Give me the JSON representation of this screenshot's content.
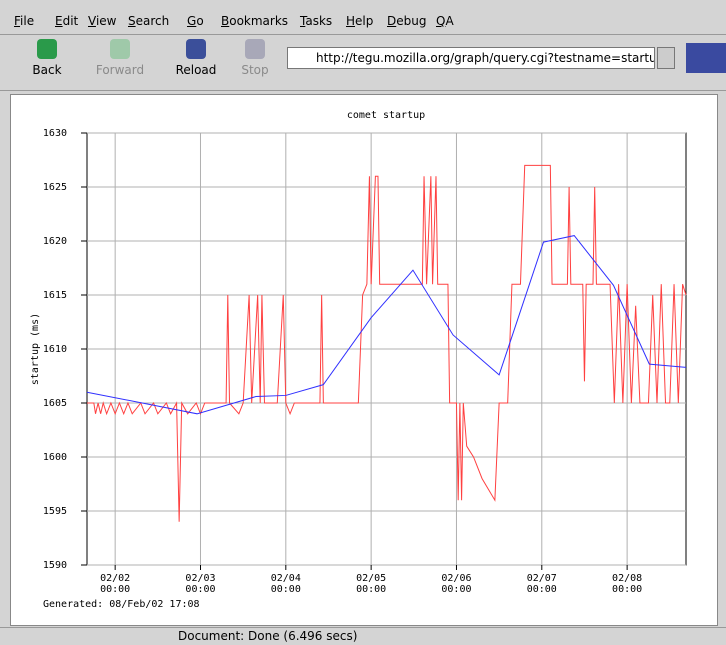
{
  "menu": [
    "File",
    "Edit",
    "View",
    "Search",
    "Go",
    "Bookmarks",
    "Tasks",
    "Help",
    "Debug",
    "QA"
  ],
  "toolbar": {
    "back": "Back",
    "forward": "Forward",
    "reload": "Reload",
    "stop": "Stop",
    "url": "http://tegu.mozilla.org/graph/query.cgi?testname=startup&"
  },
  "chart_data": {
    "type": "line",
    "title": "comet startup",
    "ylabel": "startup (ms)",
    "xlim": [
      1.67,
      8.69
    ],
    "xticks": [
      {
        "value": 2,
        "label": "02/02\n00:00"
      },
      {
        "value": 3,
        "label": "02/03\n00:00"
      },
      {
        "value": 4,
        "label": "02/04\n00:00"
      },
      {
        "value": 5,
        "label": "02/05\n00:00"
      },
      {
        "value": 6,
        "label": "02/06\n00:00"
      },
      {
        "value": 7,
        "label": "02/07\n00:00"
      },
      {
        "value": 8,
        "label": "02/08\n00:00"
      }
    ],
    "ylim": [
      1590,
      1630
    ],
    "yticks": [
      1590,
      1595,
      1600,
      1605,
      1610,
      1615,
      1620,
      1625,
      1630
    ],
    "grid": true,
    "series": [
      {
        "color": "#ff4040",
        "x": [
          1.67,
          1.75,
          1.77,
          1.8,
          1.83,
          1.86,
          1.9,
          1.95,
          2.0,
          2.05,
          2.1,
          2.15,
          2.2,
          2.3,
          2.35,
          2.45,
          2.5,
          2.6,
          2.65,
          2.72,
          2.75,
          2.78,
          2.85,
          2.95,
          3.0,
          3.05,
          3.3,
          3.32,
          3.34,
          3.45,
          3.5,
          3.57,
          3.6,
          3.67,
          3.7,
          3.72,
          3.75,
          3.9,
          3.97,
          4.0,
          4.05,
          4.1,
          4.4,
          4.42,
          4.44,
          4.85,
          4.9,
          4.95,
          4.98,
          5.0,
          5.05,
          5.08,
          5.1,
          5.6,
          5.62,
          5.65,
          5.7,
          5.72,
          5.76,
          5.78,
          5.9,
          5.92,
          6.0,
          6.02,
          6.04,
          6.06,
          6.08,
          6.12,
          6.2,
          6.3,
          6.45,
          6.5,
          6.6,
          6.65,
          6.75,
          6.8,
          7.1,
          7.12,
          7.3,
          7.32,
          7.34,
          7.48,
          7.5,
          7.52,
          7.6,
          7.62,
          7.64,
          7.8,
          7.85,
          7.9,
          7.95,
          8.0,
          8.05,
          8.1,
          8.15,
          8.25,
          8.3,
          8.35,
          8.4,
          8.45,
          8.5,
          8.55,
          8.6,
          8.65,
          8.69
        ],
        "values": [
          1605,
          1605,
          1604,
          1605,
          1604,
          1605,
          1604,
          1605,
          1604,
          1605,
          1604,
          1605,
          1604,
          1605,
          1604,
          1605,
          1604,
          1605,
          1604,
          1605,
          1594,
          1605,
          1604,
          1605,
          1604,
          1605,
          1605,
          1615,
          1605,
          1604,
          1605,
          1615,
          1605,
          1615,
          1605,
          1615,
          1605,
          1605,
          1615,
          1605,
          1604,
          1605,
          1605,
          1615,
          1605,
          1605,
          1615,
          1616,
          1626,
          1616,
          1626,
          1626,
          1616,
          1616,
          1626,
          1616,
          1626,
          1616,
          1626,
          1616,
          1616,
          1605,
          1605,
          1596,
          1605,
          1596,
          1605,
          1601,
          1600,
          1598,
          1596,
          1605,
          1605,
          1616,
          1616,
          1627,
          1627,
          1616,
          1616,
          1625,
          1616,
          1616,
          1607,
          1616,
          1616,
          1625,
          1616,
          1616,
          1605,
          1616,
          1605,
          1616,
          1605,
          1614,
          1605,
          1605,
          1615,
          1605,
          1616,
          1605,
          1605,
          1616,
          1605,
          1616,
          1615
        ]
      },
      {
        "color": "#3030ff",
        "x": [
          1.67,
          2.96,
          3.65,
          4.0,
          4.44,
          5.0,
          5.49,
          5.96,
          6.5,
          7.02,
          7.38,
          7.84,
          8.26,
          8.69
        ],
        "values": [
          1606.0,
          1604.0,
          1605.6,
          1605.7,
          1606.7,
          1612.9,
          1617.3,
          1611.3,
          1607.6,
          1619.9,
          1620.5,
          1615.9,
          1608.6,
          1608.3
        ]
      }
    ]
  },
  "footer": "Generated: 08/Feb/02 17:08",
  "status": "Document: Done (6.496 secs)"
}
